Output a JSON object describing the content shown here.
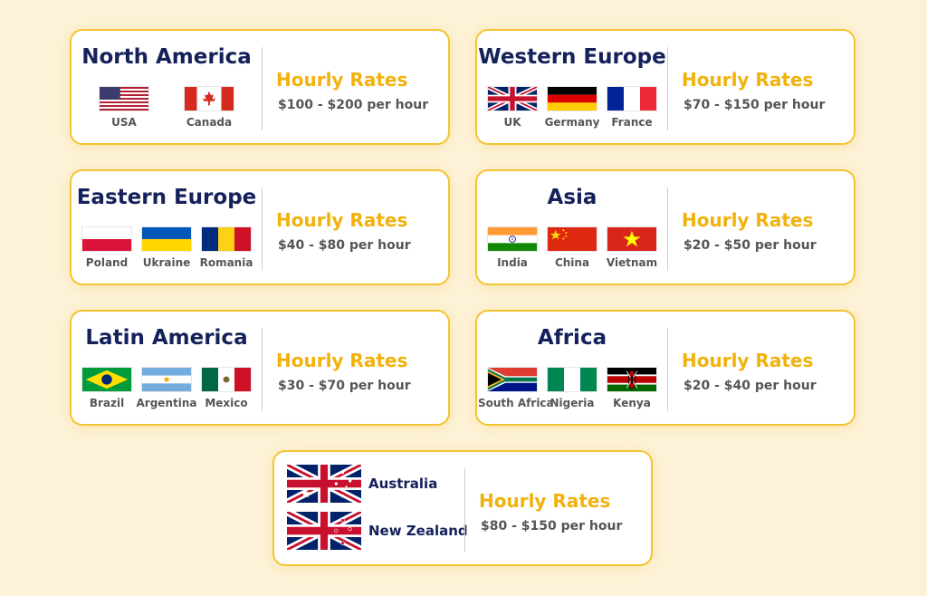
{
  "colors": {
    "background": "#fdf2d8",
    "border": "#f4c430",
    "title": "#14215a",
    "accent": "#f2b20d",
    "text": "#555555"
  },
  "regions": [
    {
      "title": "North America",
      "rate_label": "Hourly Rates",
      "rate": "$100 - $200 per hour",
      "countries": [
        {
          "name": "USA",
          "flag": "usa-flag"
        },
        {
          "name": "Canada",
          "flag": "canada-flag"
        }
      ]
    },
    {
      "title": "Western Europe",
      "rate_label": "Hourly Rates",
      "rate": "$70 - $150 per hour",
      "countries": [
        {
          "name": "UK",
          "flag": "uk-flag"
        },
        {
          "name": "Germany",
          "flag": "germany-flag"
        },
        {
          "name": "France",
          "flag": "france-flag"
        }
      ]
    },
    {
      "title": "Eastern Europe",
      "rate_label": "Hourly Rates",
      "rate": "$40 - $80 per hour",
      "countries": [
        {
          "name": "Poland",
          "flag": "poland-flag"
        },
        {
          "name": "Ukraine",
          "flag": "ukraine-flag"
        },
        {
          "name": "Romania",
          "flag": "romania-flag"
        }
      ]
    },
    {
      "title": "Asia",
      "rate_label": "Hourly Rates",
      "rate": "$20 - $50 per hour",
      "countries": [
        {
          "name": "India",
          "flag": "india-flag"
        },
        {
          "name": "China",
          "flag": "china-flag"
        },
        {
          "name": "Vietnam",
          "flag": "vietnam-flag"
        }
      ]
    },
    {
      "title": "Latin America",
      "rate_label": "Hourly Rates",
      "rate": "$30 - $70 per hour",
      "countries": [
        {
          "name": "Brazil",
          "flag": "brazil-flag"
        },
        {
          "name": "Argentina",
          "flag": "argentina-flag"
        },
        {
          "name": "Mexico",
          "flag": "mexico-flag"
        }
      ]
    },
    {
      "title": "Africa",
      "rate_label": "Hourly Rates",
      "rate": "$20 - $40 per hour",
      "countries": [
        {
          "name": "South Africa",
          "flag": "south-africa-flag"
        },
        {
          "name": "Nigeria",
          "flag": "nigeria-flag"
        },
        {
          "name": "Kenya",
          "flag": "kenya-flag"
        }
      ]
    },
    {
      "title": "",
      "rate_label": "Hourly Rates",
      "rate": "$80 - $150 per hour",
      "countries": [
        {
          "name": "Australia",
          "flag": "australia-flag"
        },
        {
          "name": "New Zealand",
          "flag": "new-zealand-flag"
        }
      ]
    }
  ]
}
